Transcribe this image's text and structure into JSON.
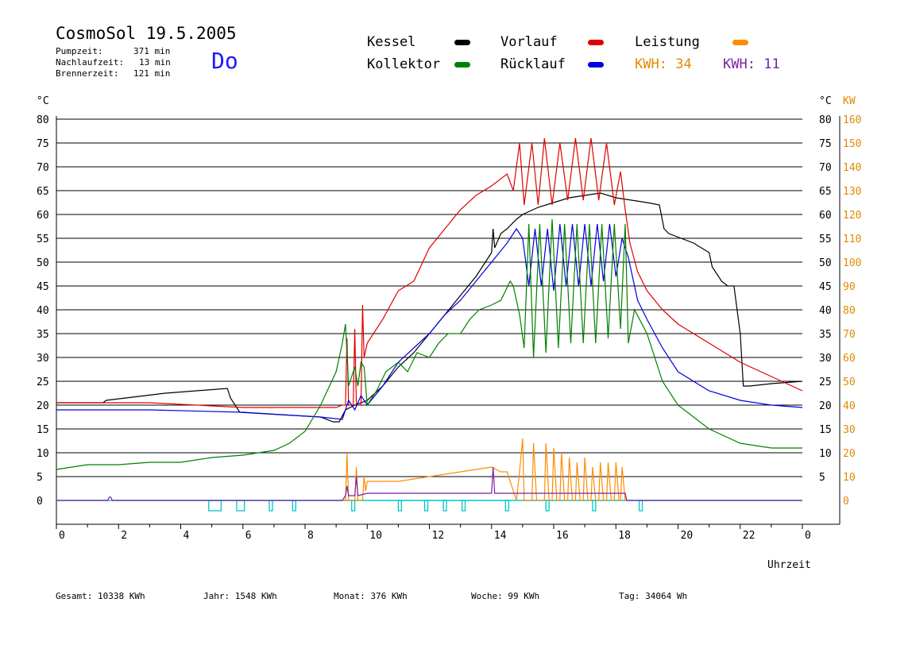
{
  "header": {
    "title": "CosmoSol 19.5.2005",
    "day": "Do",
    "stats": [
      {
        "label": "Pumpzeit:",
        "value": "371 min"
      },
      {
        "label": "Nachlaufzeit:",
        "value": "13 min"
      },
      {
        "label": "Brennerzeit:",
        "value": "121 min"
      }
    ]
  },
  "legend": {
    "kessel": {
      "label": "Kessel",
      "color": "#000000"
    },
    "vorlauf": {
      "label": "Vorlauf",
      "color": "#e00000"
    },
    "leistung": {
      "label": "Leistung",
      "color": "#ff8c00"
    },
    "kollektor": {
      "label": "Kollektor",
      "color": "#008000"
    },
    "ruecklauf": {
      "label": "Rücklauf",
      "color": "#0000e0"
    },
    "kwh1": {
      "label": "KWH:",
      "value": "34",
      "color": "#e08a00"
    },
    "kwh2": {
      "label": "KWH:",
      "value": "11",
      "color": "#7b1fa2"
    }
  },
  "footer": [
    {
      "label": "Gesamt:",
      "value": "10338 KWh"
    },
    {
      "label": "Jahr:",
      "value": "1548 KWh"
    },
    {
      "label": "Monat:",
      "value": "376 KWh"
    },
    {
      "label": "Woche:",
      "value": "99 KWh"
    },
    {
      "label": "Tag:",
      "value": "34064 Wh"
    }
  ],
  "chart_data": {
    "type": "line",
    "xlabel": "Uhrzeit",
    "ylabel_left": "°C",
    "ylabel_right_1": "°C",
    "ylabel_right_2": "KW",
    "xlim": [
      0,
      24
    ],
    "ylim": [
      0,
      80
    ],
    "ylim_right_kw": [
      0,
      160
    ],
    "grid": true,
    "x_ticks": [
      "0",
      "2",
      "4",
      "6",
      "8",
      "10",
      "12",
      "14",
      "16",
      "18",
      "20",
      "22",
      "0"
    ],
    "y_ticks_left": [
      "0",
      "5",
      "10",
      "15",
      "20",
      "25",
      "30",
      "35",
      "40",
      "45",
      "50",
      "55",
      "60",
      "65",
      "70",
      "75",
      "80"
    ],
    "y_ticks_right_c": [
      "5",
      "10",
      "15",
      "20",
      "25",
      "30",
      "35",
      "40",
      "45",
      "50",
      "55",
      "60",
      "65",
      "70",
      "75",
      "80"
    ],
    "y_ticks_right_kw": [
      "0",
      "10",
      "20",
      "30",
      "40",
      "50",
      "60",
      "70",
      "80",
      "90",
      "100",
      "110",
      "120",
      "130",
      "140",
      "150",
      "160"
    ],
    "pump_color": "#00c8c8",
    "pump_intervals": [
      [
        4.9,
        5.3
      ],
      [
        5.8,
        6.05
      ],
      [
        6.85,
        6.95
      ],
      [
        7.6,
        7.7
      ],
      [
        9.5,
        9.6
      ],
      [
        11.0,
        11.1
      ],
      [
        11.85,
        11.95
      ],
      [
        12.45,
        12.55
      ],
      [
        13.05,
        13.15
      ],
      [
        14.45,
        14.55
      ],
      [
        15.75,
        15.85
      ],
      [
        17.25,
        17.35
      ],
      [
        18.75,
        18.85
      ]
    ],
    "series": [
      {
        "name": "Kessel",
        "color": "#000000",
        "x": [
          0,
          1.5,
          1.6,
          3.5,
          5.5,
          5.6,
          5.9,
          8.5,
          8.9,
          9.1,
          9.3,
          9.6,
          10.0,
          10.5,
          11.0,
          11.5,
          12.0,
          12.5,
          13.0,
          13.5,
          14.0,
          14.05,
          14.1,
          14.3,
          14.5,
          14.8,
          15.0,
          15.5,
          16.0,
          16.5,
          17.0,
          17.5,
          18.0,
          18.5,
          19.0,
          19.4,
          19.55,
          19.7,
          20.5,
          21.0,
          21.1,
          21.4,
          21.6,
          21.8,
          22.0,
          22.1,
          22.3,
          23.0,
          24.0
        ],
        "y": [
          20.5,
          20.5,
          21,
          22.5,
          23.5,
          21.5,
          18.5,
          17.5,
          16.5,
          16.5,
          19,
          20,
          21,
          24,
          28,
          31,
          35,
          39,
          43,
          47,
          52,
          57,
          53,
          56,
          57,
          59,
          60,
          61.5,
          62.5,
          63.5,
          64,
          64.5,
          63.5,
          63,
          62.5,
          62,
          57,
          56,
          54,
          52,
          49,
          46,
          45,
          45,
          35,
          24,
          24,
          24.5,
          25
        ]
      },
      {
        "name": "Vorlauf",
        "color": "#e00000",
        "x": [
          0,
          3,
          6,
          9,
          9.2,
          9.3,
          9.35,
          9.4,
          9.55,
          9.6,
          9.65,
          9.8,
          9.85,
          9.9,
          10.0,
          10.5,
          11.0,
          11.5,
          12.0,
          12.5,
          13.0,
          13.5,
          14.0,
          14.5,
          14.7,
          14.9,
          15.05,
          15.3,
          15.5,
          15.7,
          15.95,
          16.2,
          16.45,
          16.7,
          16.95,
          17.2,
          17.45,
          17.7,
          17.95,
          18.15,
          18.3,
          18.45,
          18.7,
          19.0,
          19.5,
          20.0,
          21.0,
          22.0,
          23.0,
          24.0
        ],
        "y": [
          20.5,
          20.5,
          19.5,
          19.5,
          20,
          20,
          34,
          20,
          20,
          36,
          20,
          20,
          41,
          30,
          33,
          38,
          44,
          46,
          53,
          57,
          61,
          64,
          66,
          68.5,
          65,
          75,
          62,
          75,
          62,
          76,
          62,
          75,
          63,
          76,
          63,
          76,
          63,
          75,
          62,
          69,
          61,
          54,
          48,
          44,
          40,
          37,
          33,
          29,
          26,
          23
        ]
      },
      {
        "name": "Rücklauf",
        "color": "#0000e0",
        "x": [
          0,
          3,
          6,
          8.5,
          9.2,
          9.4,
          9.6,
          9.8,
          10.0,
          10.5,
          11.0,
          11.5,
          12.0,
          12.5,
          13.0,
          13.5,
          14.0,
          14.5,
          14.8,
          15.0,
          15.2,
          15.4,
          15.6,
          15.8,
          16.0,
          16.2,
          16.4,
          16.6,
          16.8,
          17.0,
          17.2,
          17.4,
          17.6,
          17.8,
          18.0,
          18.2,
          18.4,
          18.7,
          19.0,
          19.5,
          20.0,
          21.0,
          22.0,
          23.0,
          24.0
        ],
        "y": [
          19,
          19,
          18.5,
          17.5,
          17,
          21,
          19,
          22,
          20,
          24,
          29,
          32,
          35,
          39,
          42,
          46,
          50,
          54,
          57,
          55,
          45,
          57,
          45,
          57,
          44,
          58,
          45,
          58,
          45,
          58,
          45,
          58,
          46,
          58,
          47,
          55,
          51,
          42,
          38,
          32,
          27,
          23,
          21,
          20,
          19.5
        ]
      },
      {
        "name": "Kollektor",
        "color": "#008000",
        "x": [
          0,
          1,
          2,
          3,
          4,
          5,
          6,
          7,
          7.5,
          8,
          8.5,
          9.0,
          9.2,
          9.3,
          9.4,
          9.6,
          9.7,
          9.8,
          9.9,
          10.0,
          10.3,
          10.6,
          11.0,
          11.3,
          11.6,
          12.0,
          12.3,
          12.6,
          13.0,
          13.3,
          13.6,
          14.0,
          14.3,
          14.6,
          14.7,
          14.9,
          15.05,
          15.2,
          15.35,
          15.55,
          15.75,
          15.95,
          16.15,
          16.35,
          16.55,
          16.75,
          16.95,
          17.15,
          17.35,
          17.55,
          17.75,
          17.95,
          18.15,
          18.3,
          18.4,
          18.6,
          19.0,
          19.5,
          20.0,
          21.0,
          22.0,
          23.0,
          24.0
        ],
        "y": [
          6.5,
          7.5,
          7.5,
          8,
          8,
          9,
          9.5,
          10.5,
          12,
          14.5,
          20,
          27,
          33,
          37,
          24,
          28,
          24,
          29,
          28,
          20,
          23,
          27,
          29,
          27,
          31,
          30,
          33,
          35,
          35,
          38,
          40,
          41,
          42,
          46,
          45,
          39,
          32,
          58,
          30,
          58,
          31,
          59,
          32,
          58,
          33,
          58,
          33,
          58,
          33,
          58,
          34,
          58,
          36,
          58,
          33,
          40,
          35,
          25,
          20,
          15,
          12,
          11,
          11
        ]
      },
      {
        "name": "Leistung",
        "color": "#ff8c00",
        "x": [
          9.2,
          9.3,
          9.35,
          9.4,
          9.6,
          9.65,
          9.7,
          9.85,
          9.9,
          9.95,
          10.0,
          11.0,
          12.0,
          13.0,
          13.5,
          14.0,
          14.3,
          14.5,
          14.8,
          14.9,
          15.0,
          15.05,
          15.3,
          15.35,
          15.45,
          15.7,
          15.75,
          15.85,
          15.95,
          16.0,
          16.1,
          16.2,
          16.25,
          16.35,
          16.45,
          16.5,
          16.6,
          16.7,
          16.75,
          16.85,
          16.95,
          17.0,
          17.1,
          17.2,
          17.25,
          17.35,
          17.45,
          17.5,
          17.6,
          17.7,
          17.75,
          17.85,
          17.95,
          18.0,
          18.1,
          18.15,
          18.2,
          18.3,
          18.35
        ],
        "y": [
          0,
          0,
          10,
          0,
          0,
          7,
          0,
          0,
          5,
          2,
          4,
          4,
          5,
          6,
          6.5,
          7,
          6,
          6,
          0,
          6,
          13,
          0,
          0,
          12,
          0,
          0,
          12,
          0,
          0,
          11,
          0,
          0,
          10,
          0,
          0,
          9,
          0,
          0,
          8,
          0,
          0,
          9,
          0,
          0,
          7,
          0,
          0,
          8,
          0,
          0,
          8,
          0,
          0,
          8,
          0,
          0,
          7,
          0,
          0
        ]
      },
      {
        "name": "Leistung2",
        "color": "#7b1fa2",
        "x": [
          0,
          1.65,
          1.7,
          1.75,
          1.8,
          9.2,
          9.3,
          9.35,
          9.4,
          9.6,
          9.65,
          9.7,
          10.0,
          11.0,
          12.0,
          13.0,
          14.0,
          14.05,
          14.1,
          14.15,
          14.5,
          15.0,
          15.5,
          16.0,
          16.5,
          17.0,
          17.5,
          18.0,
          18.3,
          18.35,
          24.0
        ],
        "y": [
          0,
          0,
          0.7,
          0.7,
          0,
          0,
          1,
          3,
          1,
          1,
          5,
          1,
          1.5,
          1.5,
          1.5,
          1.5,
          1.5,
          7,
          1.5,
          1.5,
          1.5,
          1.5,
          1.5,
          1.5,
          1.5,
          1.5,
          1.5,
          1.5,
          1.5,
          0,
          0
        ]
      }
    ]
  }
}
